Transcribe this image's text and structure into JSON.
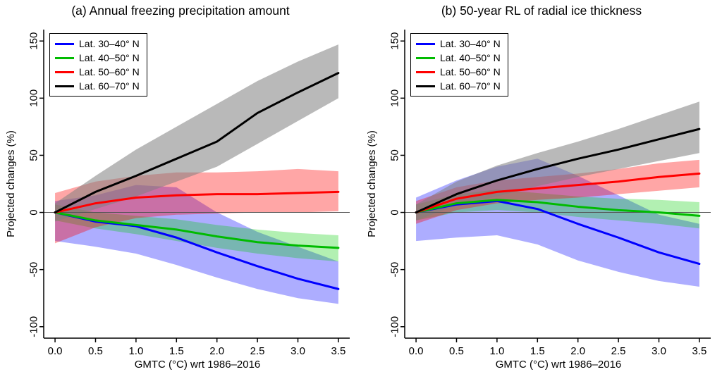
{
  "figure": {
    "background": "#ffffff",
    "axis_color": "#000000",
    "zero_line_color": "#555555"
  },
  "chart_data": [
    {
      "type": "line",
      "panel": "a",
      "title": "(a) Annual freezing precipitation amount",
      "xlabel": "GMTC (°C) wrt 1986–2016",
      "ylabel": "Projected changes (%)",
      "xlim": [
        -0.14,
        3.64
      ],
      "ylim": [
        -110,
        160
      ],
      "xticks": [
        "0.0",
        "0.5",
        "1.0",
        "1.5",
        "2.0",
        "2.5",
        "3.0",
        "3.5"
      ],
      "xtick_values": [
        0,
        0.5,
        1,
        1.5,
        2,
        2.5,
        3,
        3.5
      ],
      "yticks": [
        "-100",
        "-50",
        "0",
        "50",
        "100",
        "150"
      ],
      "ytick_values": [
        -100,
        -50,
        0,
        50,
        100,
        150
      ],
      "zero_line": 0,
      "grid": false,
      "legend_position": "top-left",
      "x": [
        0,
        0.5,
        1,
        1.5,
        2,
        2.5,
        3,
        3.5
      ],
      "series": [
        {
          "name": "lat-30-40",
          "label": "Lat. 30–40° N",
          "color": "#0000ff",
          "band_color": "#0000ff",
          "band_opacity": 0.32,
          "values": [
            0,
            -8,
            -12,
            -22,
            -35,
            -47,
            -58,
            -67
          ],
          "band_upper": [
            10,
            15,
            24,
            22,
            0,
            -17,
            -30,
            -43
          ],
          "band_lower": [
            -25,
            -30,
            -36,
            -46,
            -57,
            -67,
            -75,
            -80
          ]
        },
        {
          "name": "lat-40-50",
          "label": "Lat. 40–50° N",
          "color": "#00bb00",
          "band_color": "#00cc00",
          "band_opacity": 0.3,
          "values": [
            0,
            -7,
            -11,
            -15,
            -21,
            -26,
            -29,
            -31
          ],
          "band_upper": [
            7,
            0,
            -3,
            -6,
            -11,
            -15,
            -18,
            -20
          ],
          "band_lower": [
            -7,
            -14,
            -19,
            -25,
            -31,
            -36,
            -40,
            -43
          ]
        },
        {
          "name": "lat-50-60",
          "label": "Lat. 50–60° N",
          "color": "#ff0000",
          "band_color": "#ff0000",
          "band_opacity": 0.35,
          "values": [
            0,
            8,
            13,
            15,
            16,
            16,
            17,
            18
          ],
          "band_upper": [
            17,
            27,
            32,
            35,
            35,
            36,
            38,
            36
          ],
          "band_lower": [
            -27,
            -13,
            -5,
            -2,
            -1,
            0,
            0,
            1
          ]
        },
        {
          "name": "lat-60-70",
          "label": "Lat. 60–70° N",
          "color": "#000000",
          "band_color": "#808080",
          "band_opacity": 0.55,
          "values": [
            0,
            18,
            32,
            47,
            62,
            87,
            105,
            122
          ],
          "band_upper": [
            8,
            32,
            55,
            75,
            95,
            115,
            132,
            147
          ],
          "band_lower": [
            -8,
            3,
            14,
            27,
            40,
            60,
            80,
            100
          ]
        }
      ]
    },
    {
      "type": "line",
      "panel": "b",
      "title": "(b) 50-year RL of radial ice thickness",
      "xlabel": "GMTC (°C) wrt 1986–2016",
      "ylabel": "Projected changes (%)",
      "xlim": [
        -0.14,
        3.64
      ],
      "ylim": [
        -110,
        160
      ],
      "xticks": [
        "0.0",
        "0.5",
        "1.0",
        "1.5",
        "2.0",
        "2.5",
        "3.0",
        "3.5"
      ],
      "xtick_values": [
        0,
        0.5,
        1,
        1.5,
        2,
        2.5,
        3,
        3.5
      ],
      "yticks": [
        "-100",
        "-50",
        "0",
        "50",
        "100",
        "150"
      ],
      "ytick_values": [
        -100,
        -50,
        0,
        50,
        100,
        150
      ],
      "zero_line": 0,
      "grid": false,
      "legend_position": "top-left",
      "x": [
        0,
        0.5,
        1,
        1.5,
        2,
        2.5,
        3,
        3.5
      ],
      "series": [
        {
          "name": "lat-30-40",
          "label": "Lat. 30–40° N",
          "color": "#0000ff",
          "band_color": "#0000ff",
          "band_opacity": 0.32,
          "values": [
            0,
            7,
            10,
            3,
            -10,
            -22,
            -35,
            -45
          ],
          "band_upper": [
            13,
            28,
            40,
            47,
            32,
            15,
            -2,
            -10
          ],
          "band_lower": [
            -25,
            -22,
            -20,
            -28,
            -42,
            -52,
            -60,
            -65
          ]
        },
        {
          "name": "lat-40-50",
          "label": "Lat. 40–50° N",
          "color": "#00bb00",
          "band_color": "#00cc00",
          "band_opacity": 0.3,
          "values": [
            0,
            8,
            11,
            9,
            5,
            2,
            0,
            -3
          ],
          "band_upper": [
            7,
            16,
            20,
            17,
            14,
            12,
            11,
            9
          ],
          "band_lower": [
            -7,
            0,
            2,
            0,
            -4,
            -7,
            -10,
            -14
          ]
        },
        {
          "name": "lat-50-60",
          "label": "Lat. 50–60° N",
          "color": "#ff0000",
          "band_color": "#ff0000",
          "band_opacity": 0.35,
          "values": [
            0,
            12,
            18,
            21,
            24,
            27,
            31,
            34
          ],
          "band_upper": [
            10,
            22,
            28,
            31,
            34,
            38,
            43,
            46
          ],
          "band_lower": [
            -10,
            2,
            8,
            11,
            13,
            16,
            19,
            22
          ]
        },
        {
          "name": "lat-60-70",
          "label": "Lat. 60–70° N",
          "color": "#000000",
          "band_color": "#808080",
          "band_opacity": 0.55,
          "values": [
            0,
            16,
            28,
            38,
            47,
            55,
            64,
            73
          ],
          "band_upper": [
            7,
            27,
            41,
            52,
            62,
            73,
            85,
            97
          ],
          "band_lower": [
            -7,
            6,
            14,
            23,
            31,
            38,
            45,
            52
          ]
        }
      ]
    }
  ]
}
